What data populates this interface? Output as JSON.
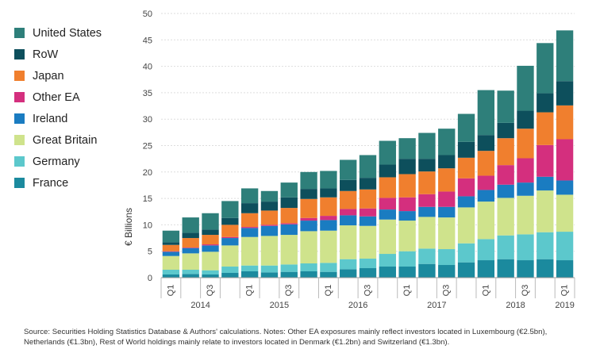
{
  "chart_data": {
    "type": "bar",
    "stacked": true,
    "ylabel": "€ Billions",
    "ylim": [
      0,
      50
    ],
    "yticks": [
      0,
      5,
      10,
      15,
      20,
      25,
      30,
      35,
      40,
      45,
      50
    ],
    "categories": [
      "2014 Q1",
      "2014 Q2",
      "2014 Q3",
      "2014 Q4",
      "2015 Q1",
      "2015 Q2",
      "2015 Q3",
      "2015 Q4",
      "2016 Q1",
      "2016 Q2",
      "2016 Q3",
      "2016 Q4",
      "2017 Q1",
      "2017 Q2",
      "2017 Q3",
      "2017 Q4",
      "2018 Q1",
      "2018 Q2",
      "2018 Q3",
      "2018 Q4",
      "2019 Q1"
    ],
    "quarter_labels": [
      "Q1",
      "",
      "Q3",
      "",
      "Q1",
      "",
      "Q3",
      "",
      "Q1",
      "",
      "Q3",
      "",
      "Q1",
      "",
      "Q3",
      "",
      "Q1",
      "",
      "Q3",
      "",
      "Q1"
    ],
    "years": [
      {
        "label": "2014",
        "start": 0,
        "end": 3
      },
      {
        "label": "2015",
        "start": 4,
        "end": 7
      },
      {
        "label": "2016",
        "start": 8,
        "end": 11
      },
      {
        "label": "2017",
        "start": 12,
        "end": 15
      },
      {
        "label": "2018",
        "start": 16,
        "end": 19
      },
      {
        "label": "2019",
        "start": 20,
        "end": 20
      }
    ],
    "series": [
      {
        "name": "France",
        "color": "#1B8A9E",
        "values": [
          0.6,
          0.7,
          0.6,
          0.9,
          1.2,
          1.0,
          1.1,
          1.2,
          1.1,
          1.6,
          1.8,
          2.1,
          2.1,
          2.6,
          2.4,
          2.9,
          3.3,
          3.5,
          3.3,
          3.5,
          3.3
        ]
      },
      {
        "name": "Germany",
        "color": "#5CC8CC",
        "values": [
          0.9,
          0.8,
          0.8,
          1.2,
          1.1,
          1.3,
          1.4,
          1.5,
          1.7,
          1.9,
          1.8,
          2.4,
          2.9,
          2.9,
          3.0,
          3.6,
          4.0,
          4.5,
          4.9,
          5.1,
          5.4
        ]
      },
      {
        "name": "Great Britain",
        "color": "#CFE38C",
        "values": [
          2.6,
          3.1,
          3.5,
          4.0,
          5.4,
          5.6,
          5.6,
          6.1,
          6.1,
          6.4,
          6.2,
          6.5,
          5.8,
          6.0,
          6.0,
          6.8,
          7.1,
          7.1,
          7.3,
          7.9,
          7.0
        ]
      },
      {
        "name": "Ireland",
        "color": "#1A7CC1",
        "values": [
          0.8,
          1.0,
          1.2,
          1.4,
          1.7,
          1.9,
          2.0,
          2.0,
          2.0,
          1.9,
          1.8,
          1.9,
          1.8,
          1.9,
          2.0,
          2.1,
          2.2,
          2.5,
          2.5,
          2.6,
          2.7
        ]
      },
      {
        "name": "Other EA",
        "color": "#D42F7E",
        "values": [
          0.1,
          0.1,
          0.2,
          0.2,
          0.2,
          0.2,
          0.2,
          0.5,
          0.8,
          1.2,
          1.5,
          2.2,
          2.6,
          2.4,
          2.9,
          3.4,
          2.7,
          3.7,
          4.6,
          6.0,
          7.8
        ]
      },
      {
        "name": "Japan",
        "color": "#F07F2E",
        "values": [
          1.2,
          1.8,
          1.8,
          2.3,
          2.6,
          2.7,
          2.9,
          3.6,
          3.5,
          3.4,
          3.6,
          3.9,
          4.4,
          4.3,
          4.4,
          3.9,
          4.7,
          5.1,
          5.6,
          6.2,
          6.4
        ]
      },
      {
        "name": "RoW",
        "color": "#0D4F5C",
        "values": [
          0.5,
          1.0,
          1.0,
          1.3,
          1.9,
          1.7,
          2.0,
          1.9,
          1.7,
          2.1,
          2.2,
          2.4,
          2.9,
          2.4,
          2.5,
          3.0,
          3.0,
          2.9,
          3.4,
          3.6,
          4.6
        ]
      },
      {
        "name": "United States",
        "color": "#2E7F7A",
        "values": [
          2.2,
          2.9,
          3.1,
          3.2,
          2.8,
          2.0,
          2.8,
          3.2,
          3.3,
          3.8,
          4.3,
          4.5,
          3.9,
          4.9,
          5.0,
          5.3,
          8.5,
          6.1,
          8.5,
          9.5,
          9.6
        ]
      }
    ]
  },
  "source_note": "Source: Securities Holding Statistics Database & Authors' calculations. Notes: Other EA exposures mainly reflect investors located in Luxembourg (€2.5bn), Netherlands (€1.3bn), Rest of World holdings mainly relate to investors located in Denmark (€1.2bn) and Switzerland (€1.3bn)."
}
